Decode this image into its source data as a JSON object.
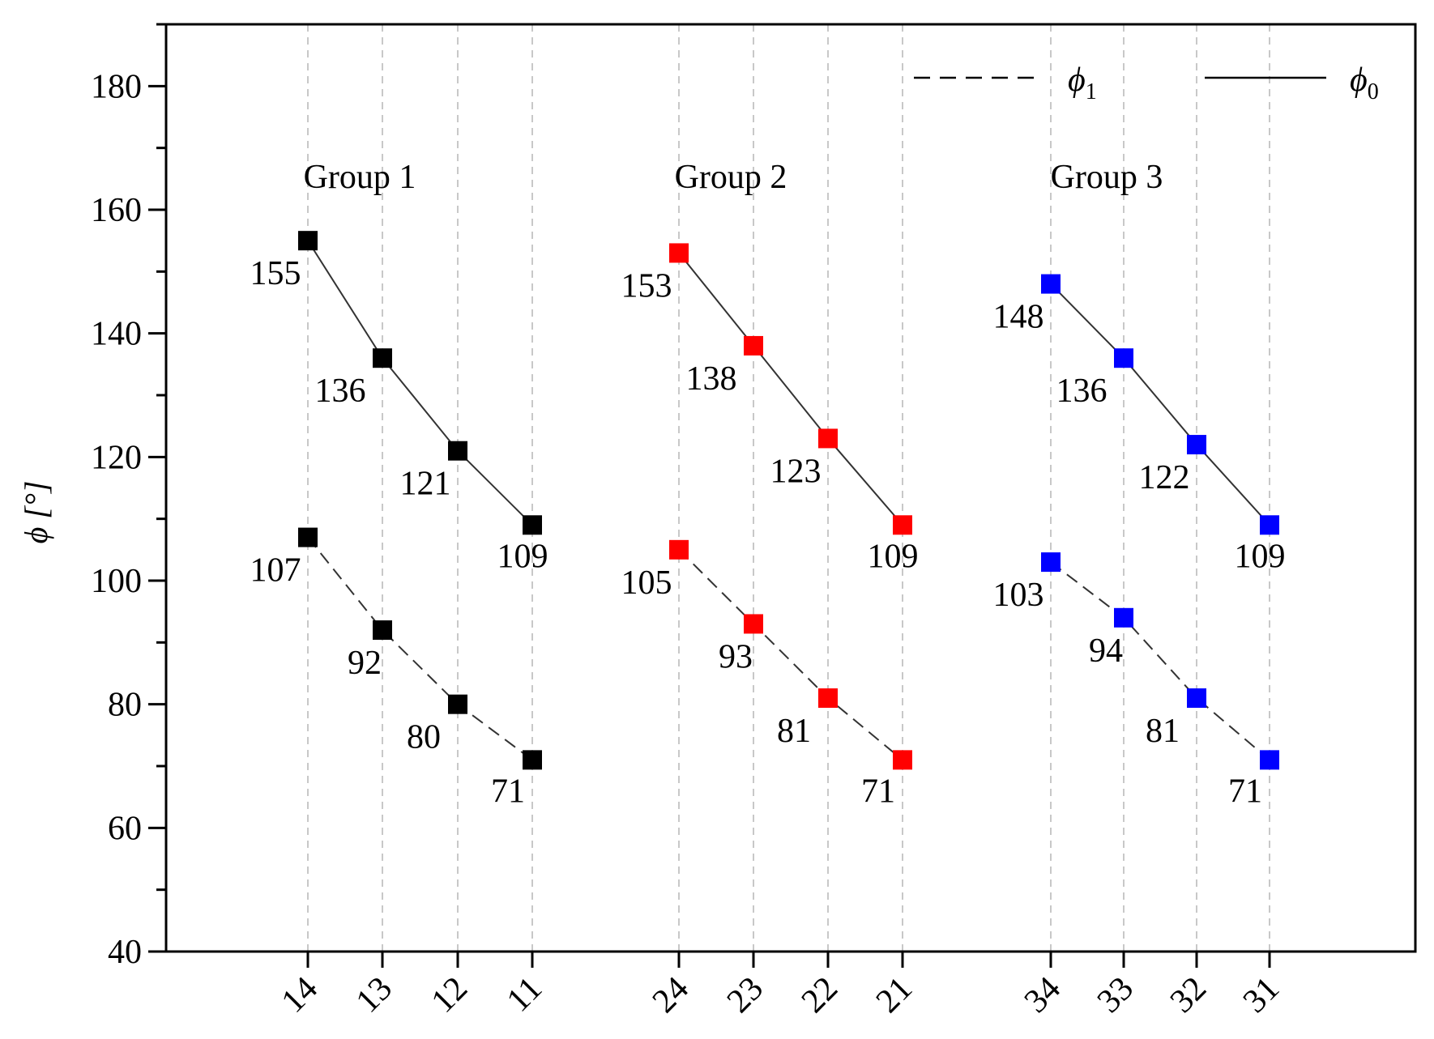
{
  "chart_data": {
    "type": "line",
    "title": "",
    "xlabel": "",
    "ylabel": "ϕ [°]",
    "ylim": [
      40,
      190
    ],
    "yticks": [
      40,
      60,
      80,
      100,
      120,
      140,
      160,
      180
    ],
    "grid": "vertical dashed at categories",
    "legend_position": "top-right",
    "legend": [
      {
        "symbol": "ϕ",
        "sub": "1",
        "style": "dashed"
      },
      {
        "symbol": "ϕ",
        "sub": "0",
        "style": "solid"
      }
    ],
    "groups": [
      {
        "name": "Group 1",
        "color": "#000000",
        "categories": [
          "14",
          "13",
          "12",
          "11"
        ],
        "series": [
          {
            "name": "ϕ0",
            "style": "solid",
            "values": [
              155,
              136,
              121,
              109
            ]
          },
          {
            "name": "ϕ1",
            "style": "dashed",
            "values": [
              107,
              92,
              80,
              71
            ]
          }
        ]
      },
      {
        "name": "Group 2",
        "color": "#ff0000",
        "categories": [
          "24",
          "23",
          "22",
          "21"
        ],
        "series": [
          {
            "name": "ϕ0",
            "style": "solid",
            "values": [
              153,
              138,
              123,
              109
            ]
          },
          {
            "name": "ϕ1",
            "style": "dashed",
            "values": [
              105,
              93,
              81,
              71
            ]
          }
        ]
      },
      {
        "name": "Group 3",
        "color": "#0000ff",
        "categories": [
          "34",
          "33",
          "32",
          "31"
        ],
        "series": [
          {
            "name": "ϕ0",
            "style": "solid",
            "values": [
              148,
              136,
              122,
              109
            ]
          },
          {
            "name": "ϕ1",
            "style": "dashed",
            "values": [
              103,
              94,
              81,
              71
            ]
          }
        ]
      }
    ]
  }
}
